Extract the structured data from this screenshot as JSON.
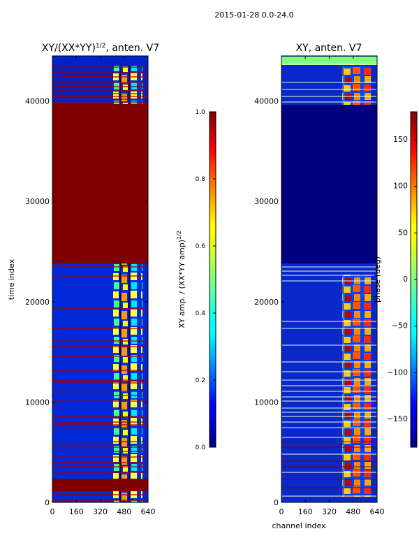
{
  "chart_data": [
    {
      "type": "heatmap",
      "figure_title": "2015-01-28 0.0-24.0",
      "title_main": "XY/(XX*YY)",
      "title_sup": "1/2",
      "title_suffix": ", anten. V7",
      "ylabel": "time index",
      "xlabel": "",
      "xlim": [
        0,
        640
      ],
      "ylim": [
        0,
        44500
      ],
      "xticks": [
        0,
        160,
        320,
        480,
        640
      ],
      "yticks": [
        0,
        10000,
        20000,
        30000,
        40000
      ],
      "colorbar": {
        "label_main": "XY amp. / (XX*YY amp)",
        "label_sup": "1/2",
        "range": [
          0.0,
          1.0
        ],
        "ticks": [
          "0.0",
          "0.2",
          "0.4",
          "0.6",
          "0.8",
          "1.0"
        ],
        "colormap": "jet"
      }
    },
    {
      "type": "heatmap",
      "title_main": "XY, anten. V7",
      "xlabel": "channel index",
      "ylabel": "",
      "xlim": [
        0,
        640
      ],
      "ylim": [
        0,
        44500
      ],
      "xticks": [
        0,
        160,
        320,
        480,
        640
      ],
      "yticks": [
        0,
        10000,
        20000,
        30000,
        40000
      ],
      "colorbar": {
        "label_main": "phase (deg)",
        "range": [
          -180,
          180
        ],
        "ticks": [
          "−150",
          "−100",
          "−50",
          "0",
          "50",
          "100",
          "150"
        ],
        "colormap": "jet"
      }
    }
  ],
  "colors": {
    "jet_low": "#00007f",
    "jet_blue": "#0000ff",
    "jet_cyan": "#00ffff",
    "jet_green": "#7fff7f",
    "jet_yellow": "#ffff00",
    "jet_red": "#ff0000",
    "jet_high": "#7f0000"
  }
}
